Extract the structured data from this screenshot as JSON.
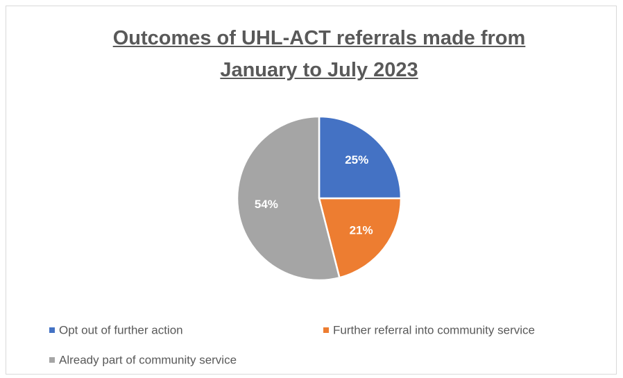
{
  "chart_data": {
    "type": "pie",
    "title": "Outcomes of UHL-ACT referrals made from January to July 2023",
    "categories": [
      "Opt out of further action",
      "Further referral into community service",
      "Already part of community service"
    ],
    "values": [
      25,
      21,
      54
    ],
    "value_labels": [
      "25%",
      "21%",
      "54%"
    ],
    "colors": [
      "#4472c4",
      "#ed7d31",
      "#a5a5a5"
    ],
    "legend": "bottom"
  }
}
